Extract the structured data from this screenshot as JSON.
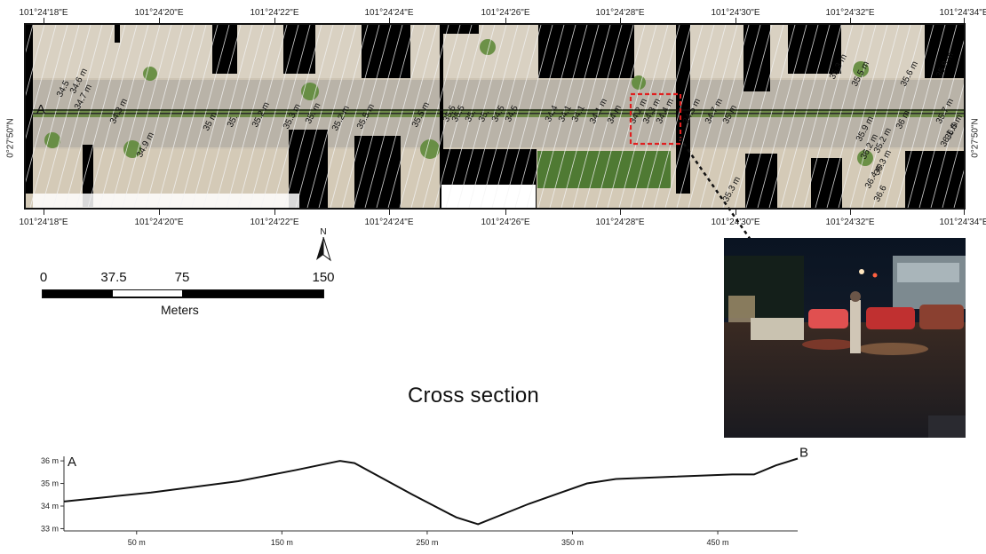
{
  "map": {
    "top_lon_labels": [
      "101°24'18\"E",
      "101°24'20\"E",
      "101°24'22\"E",
      "101°24'24\"E",
      "101°24'26\"E",
      "101°24'28\"E",
      "101°24'30\"E",
      "101°24'32\"E",
      "101°24'34\"E"
    ],
    "bottom_lon_labels": [
      "101°24'18\"E",
      "101°24'20\"E",
      "101°24'22\"E",
      "101°24'24\"E",
      "101°24'26\"E",
      "101°24'28\"E",
      "101°24'30\"E",
      "101°24'32\"E",
      "101°24'34\"E"
    ],
    "lat_label_left": "0°27'50\"N",
    "lat_label_right": "0°27'50\"N",
    "point_a": "A",
    "point_b": "B",
    "contour_labels": [
      "34.5",
      "34.6 m",
      "34.7 m",
      "34.3 m",
      "34.9 m",
      "35 m",
      "35.",
      "35.2 m",
      "35.3 m",
      "35. m",
      "35.2 m",
      "35.5 m",
      "35.5 m",
      "35.5",
      "35.5",
      "35.",
      "35.",
      "34.5",
      "34.5",
      "34.4",
      "34.1",
      "34.1",
      "34.1 m",
      "34 m",
      "34.2 m",
      "34.3 m",
      "34.4 m",
      "34.5 m",
      "34.7 m",
      "35 m",
      "35.3 m",
      "35.5 m",
      "35.6 m",
      "35.8 m",
      "35.9 m",
      "36 m",
      "35.7 m",
      "36.1 m",
      "36.2 m",
      "36.3 m",
      "36.4 m",
      "36.6",
      "35.3 m",
      "35.2 m",
      "36.5 m"
    ],
    "colors": {
      "road": "#b8b2a6",
      "buildings": "#000000",
      "vegetation": "#5f8a3a",
      "highlight": "#e02020"
    }
  },
  "north_arrow": {
    "label": "N"
  },
  "scale_bar": {
    "ticks": [
      "0",
      "37.5",
      "75",
      "150"
    ],
    "unit": "Meters"
  },
  "photo": {
    "description_icon": "flooded-street-photo"
  },
  "cross_section": {
    "title": "Cross section",
    "start_label": "A",
    "end_label": "B",
    "y_tick_labels": [
      "36 m",
      "35 m",
      "34 m",
      "33 m"
    ],
    "x_tick_labels": [
      "50 m",
      "150 m",
      "250 m",
      "350 m",
      "450 m"
    ]
  },
  "chart_data": {
    "type": "line",
    "title": "Cross section",
    "xlabel": "",
    "ylabel": "",
    "xlim": [
      0,
      505
    ],
    "ylim": [
      32.9,
      36.2
    ],
    "x": [
      0,
      60,
      120,
      160,
      190,
      200,
      240,
      270,
      285,
      320,
      360,
      380,
      420,
      460,
      475,
      490,
      505
    ],
    "series": [
      {
        "values": [
          34.2,
          34.6,
          35.1,
          35.6,
          36.0,
          35.9,
          34.5,
          33.5,
          33.2,
          34.1,
          35.0,
          35.2,
          35.3,
          35.4,
          35.4,
          35.8,
          36.1
        ]
      }
    ],
    "y_ticks": [
      33,
      34,
      35,
      36
    ],
    "x_ticks": [
      50,
      150,
      250,
      350,
      450
    ],
    "grid": false
  }
}
